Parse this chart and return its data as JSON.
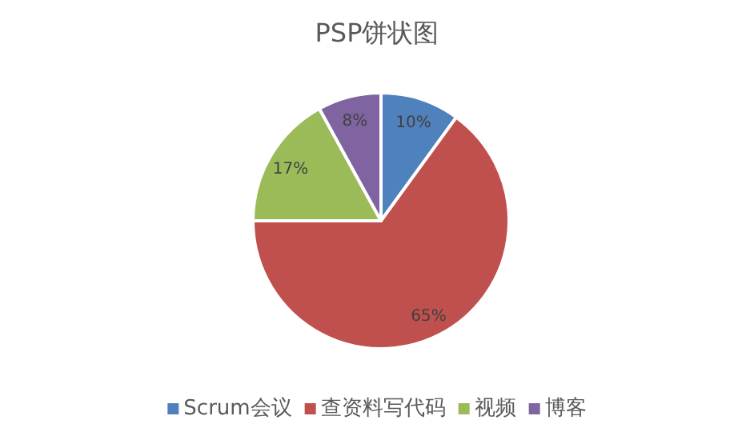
{
  "chart_data": {
    "type": "pie",
    "title": "PSP饼状图",
    "categories": [
      "Scrum会议",
      "查资料写代码",
      "视频",
      "博客"
    ],
    "values": [
      10,
      65,
      17,
      8
    ],
    "colors": [
      "#4f81bd",
      "#c0504d",
      "#9bbb59",
      "#8064a2"
    ],
    "value_labels": [
      "10%",
      "65%",
      "17%",
      "8%"
    ],
    "legend": "bottom"
  }
}
